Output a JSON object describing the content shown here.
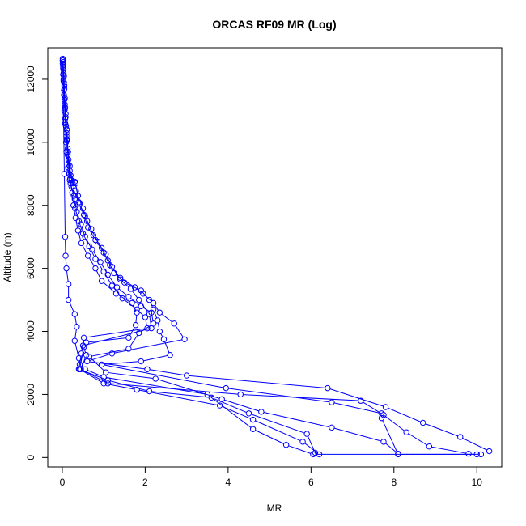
{
  "chart_data": {
    "type": "line",
    "title": "ORCAS RF09 MR (Log)",
    "xlabel": "MR",
    "ylabel": "Altitude (m)",
    "xlim": [
      -0.35,
      10.6
    ],
    "ylim": [
      -300,
      13000
    ],
    "xticks": [
      0,
      2,
      4,
      6,
      8,
      10
    ],
    "yticks": [
      0,
      2000,
      4000,
      6000,
      8000,
      10000,
      12000
    ],
    "grid": false,
    "legend": "none",
    "series_color": "#0000ff",
    "marker": "open-circle",
    "series": [
      {
        "points": [
          [
            0.01,
            12650
          ],
          [
            0.02,
            12400
          ],
          [
            0.03,
            12000
          ],
          [
            0.04,
            11500
          ],
          [
            0.05,
            11000
          ],
          [
            0.07,
            10600
          ],
          [
            0.09,
            10000
          ],
          [
            0.1,
            9700
          ],
          [
            0.14,
            9200
          ],
          [
            0.18,
            8800
          ],
          [
            0.24,
            8400
          ],
          [
            0.27,
            8000
          ],
          [
            0.32,
            7600
          ],
          [
            0.38,
            7200
          ],
          [
            0.46,
            6800
          ],
          [
            0.62,
            6400
          ],
          [
            0.8,
            6000
          ],
          [
            0.95,
            5600
          ],
          [
            1.3,
            5200
          ],
          [
            1.68,
            4900
          ],
          [
            1.8,
            4600
          ],
          [
            1.77,
            4200
          ],
          [
            1.6,
            3800
          ],
          [
            0.58,
            3650
          ],
          [
            0.52,
            3500
          ],
          [
            0.42,
            2800
          ],
          [
            1.0,
            2350
          ],
          [
            1.8,
            2150
          ],
          [
            3.8,
            1650
          ],
          [
            4.6,
            1200
          ],
          [
            5.8,
            500
          ],
          [
            6.2,
            100
          ]
        ]
      },
      {
        "points": [
          [
            0.02,
            12550
          ],
          [
            0.03,
            12200
          ],
          [
            0.05,
            11800
          ],
          [
            0.06,
            11200
          ],
          [
            0.08,
            10800
          ],
          [
            0.1,
            10200
          ],
          [
            0.13,
            9600
          ],
          [
            0.17,
            9000
          ],
          [
            0.2,
            8700
          ],
          [
            0.28,
            8300
          ],
          [
            0.31,
            7900
          ],
          [
            0.4,
            7500
          ],
          [
            0.5,
            7100
          ],
          [
            0.65,
            6700
          ],
          [
            0.8,
            6300
          ],
          [
            1.0,
            5900
          ],
          [
            1.2,
            5450
          ],
          [
            1.45,
            5050
          ],
          [
            1.8,
            4700
          ],
          [
            2.0,
            4450
          ],
          [
            2.05,
            4100
          ],
          [
            0.52,
            3800
          ],
          [
            0.46,
            3300
          ],
          [
            0.4,
            2800
          ],
          [
            1.1,
            2450
          ],
          [
            2.1,
            2100
          ],
          [
            3.6,
            1900
          ],
          [
            4.5,
            1400
          ],
          [
            5.9,
            750
          ],
          [
            6.1,
            150
          ]
        ]
      },
      {
        "points": [
          [
            0.02,
            12450
          ],
          [
            0.04,
            12100
          ],
          [
            0.05,
            11700
          ],
          [
            0.07,
            11100
          ],
          [
            0.09,
            10500
          ],
          [
            0.11,
            10100
          ],
          [
            0.15,
            9300
          ],
          [
            0.19,
            8850
          ],
          [
            0.22,
            8600
          ],
          [
            0.3,
            8200
          ],
          [
            0.35,
            7800
          ],
          [
            0.45,
            7400
          ],
          [
            0.55,
            7000
          ],
          [
            0.72,
            6600
          ],
          [
            0.92,
            6200
          ],
          [
            1.1,
            5800
          ],
          [
            1.32,
            5400
          ],
          [
            1.6,
            5100
          ],
          [
            1.9,
            4800
          ],
          [
            2.15,
            4600
          ],
          [
            2.2,
            4250
          ],
          [
            1.85,
            3950
          ],
          [
            1.6,
            3450
          ],
          [
            0.65,
            3200
          ],
          [
            1.05,
            2700
          ],
          [
            2.25,
            2500
          ],
          [
            3.85,
            1850
          ],
          [
            4.8,
            1450
          ],
          [
            6.5,
            950
          ],
          [
            7.75,
            500
          ],
          [
            8.1,
            120
          ]
        ]
      },
      {
        "points": [
          [
            0.01,
            12600
          ],
          [
            0.03,
            12300
          ],
          [
            0.04,
            11900
          ],
          [
            0.06,
            11400
          ],
          [
            0.08,
            10900
          ],
          [
            0.11,
            10400
          ],
          [
            0.14,
            9700
          ],
          [
            0.18,
            9100
          ],
          [
            0.25,
            8700
          ],
          [
            0.33,
            8450
          ],
          [
            0.4,
            8100
          ],
          [
            0.52,
            7700
          ],
          [
            0.62,
            7300
          ],
          [
            0.8,
            6900
          ],
          [
            1.0,
            6500
          ],
          [
            1.15,
            6100
          ],
          [
            1.4,
            5700
          ],
          [
            1.75,
            5400
          ],
          [
            1.95,
            5200
          ],
          [
            2.2,
            4900
          ],
          [
            2.35,
            4600
          ],
          [
            2.7,
            4250
          ],
          [
            2.95,
            3750
          ],
          [
            1.2,
            3300
          ],
          [
            0.6,
            3050
          ],
          [
            2.05,
            2800
          ],
          [
            3.0,
            2600
          ],
          [
            6.4,
            2200
          ],
          [
            7.8,
            1600
          ],
          [
            8.7,
            1100
          ],
          [
            9.6,
            650
          ],
          [
            10.3,
            200
          ]
        ]
      },
      {
        "points": [
          [
            0.01,
            12500
          ],
          [
            0.02,
            12150
          ],
          [
            0.04,
            11650
          ],
          [
            0.06,
            11050
          ],
          [
            0.08,
            10550
          ],
          [
            0.11,
            10050
          ],
          [
            0.15,
            9450
          ],
          [
            0.2,
            8950
          ],
          [
            0.3,
            8750
          ],
          [
            0.38,
            8300
          ],
          [
            0.5,
            7900
          ],
          [
            0.6,
            7500
          ],
          [
            0.75,
            7050
          ],
          [
            0.95,
            6650
          ],
          [
            1.1,
            6250
          ],
          [
            1.25,
            5850
          ],
          [
            1.5,
            5550
          ],
          [
            1.9,
            5300
          ],
          [
            2.1,
            5000
          ],
          [
            2.2,
            4700
          ],
          [
            2.3,
            4350
          ],
          [
            2.35,
            4000
          ],
          [
            2.45,
            3750
          ],
          [
            2.6,
            3250
          ],
          [
            1.9,
            3050
          ],
          [
            0.95,
            2950
          ],
          [
            3.95,
            2200
          ],
          [
            6.5,
            1750
          ],
          [
            7.7,
            1400
          ],
          [
            8.3,
            800
          ],
          [
            8.85,
            350
          ],
          [
            9.8,
            120
          ]
        ]
      },
      {
        "points": [
          [
            0.02,
            12350
          ],
          [
            0.03,
            11950
          ],
          [
            0.05,
            11350
          ],
          [
            0.07,
            10750
          ],
          [
            0.1,
            10300
          ],
          [
            0.13,
            9800
          ],
          [
            0.18,
            9250
          ],
          [
            0.22,
            8800
          ],
          [
            0.32,
            8700
          ],
          [
            0.42,
            8050
          ],
          [
            0.55,
            7650
          ],
          [
            0.7,
            7250
          ],
          [
            0.85,
            6850
          ],
          [
            1.05,
            6450
          ],
          [
            1.2,
            6050
          ],
          [
            1.4,
            5650
          ],
          [
            1.65,
            5350
          ],
          [
            1.85,
            5000
          ],
          [
            2.1,
            4550
          ],
          [
            2.15,
            4100
          ],
          [
            0.5,
            3550
          ],
          [
            0.58,
            3250
          ],
          [
            0.45,
            2800
          ],
          [
            1.1,
            2350
          ],
          [
            4.3,
            2000
          ],
          [
            7.2,
            1800
          ],
          [
            7.75,
            1350
          ],
          [
            7.7,
            1250
          ],
          [
            8.1,
            100
          ],
          [
            10.0,
            100
          ]
        ]
      },
      {
        "points": [
          [
            0.01,
            12600
          ],
          [
            0.05,
            9000
          ],
          [
            0.07,
            7000
          ],
          [
            0.08,
            6400
          ],
          [
            0.1,
            6000
          ],
          [
            0.15,
            5500
          ],
          [
            0.15,
            5000
          ],
          [
            0.3,
            4550
          ],
          [
            0.35,
            4150
          ],
          [
            0.3,
            3700
          ],
          [
            0.4,
            3150
          ],
          [
            0.42,
            2950
          ],
          [
            0.55,
            2800
          ],
          [
            1.0,
            2550
          ],
          [
            3.5,
            2000
          ],
          [
            4.6,
            900
          ],
          [
            5.4,
            400
          ],
          [
            6.05,
            100
          ],
          [
            10.1,
            100
          ]
        ]
      }
    ]
  }
}
